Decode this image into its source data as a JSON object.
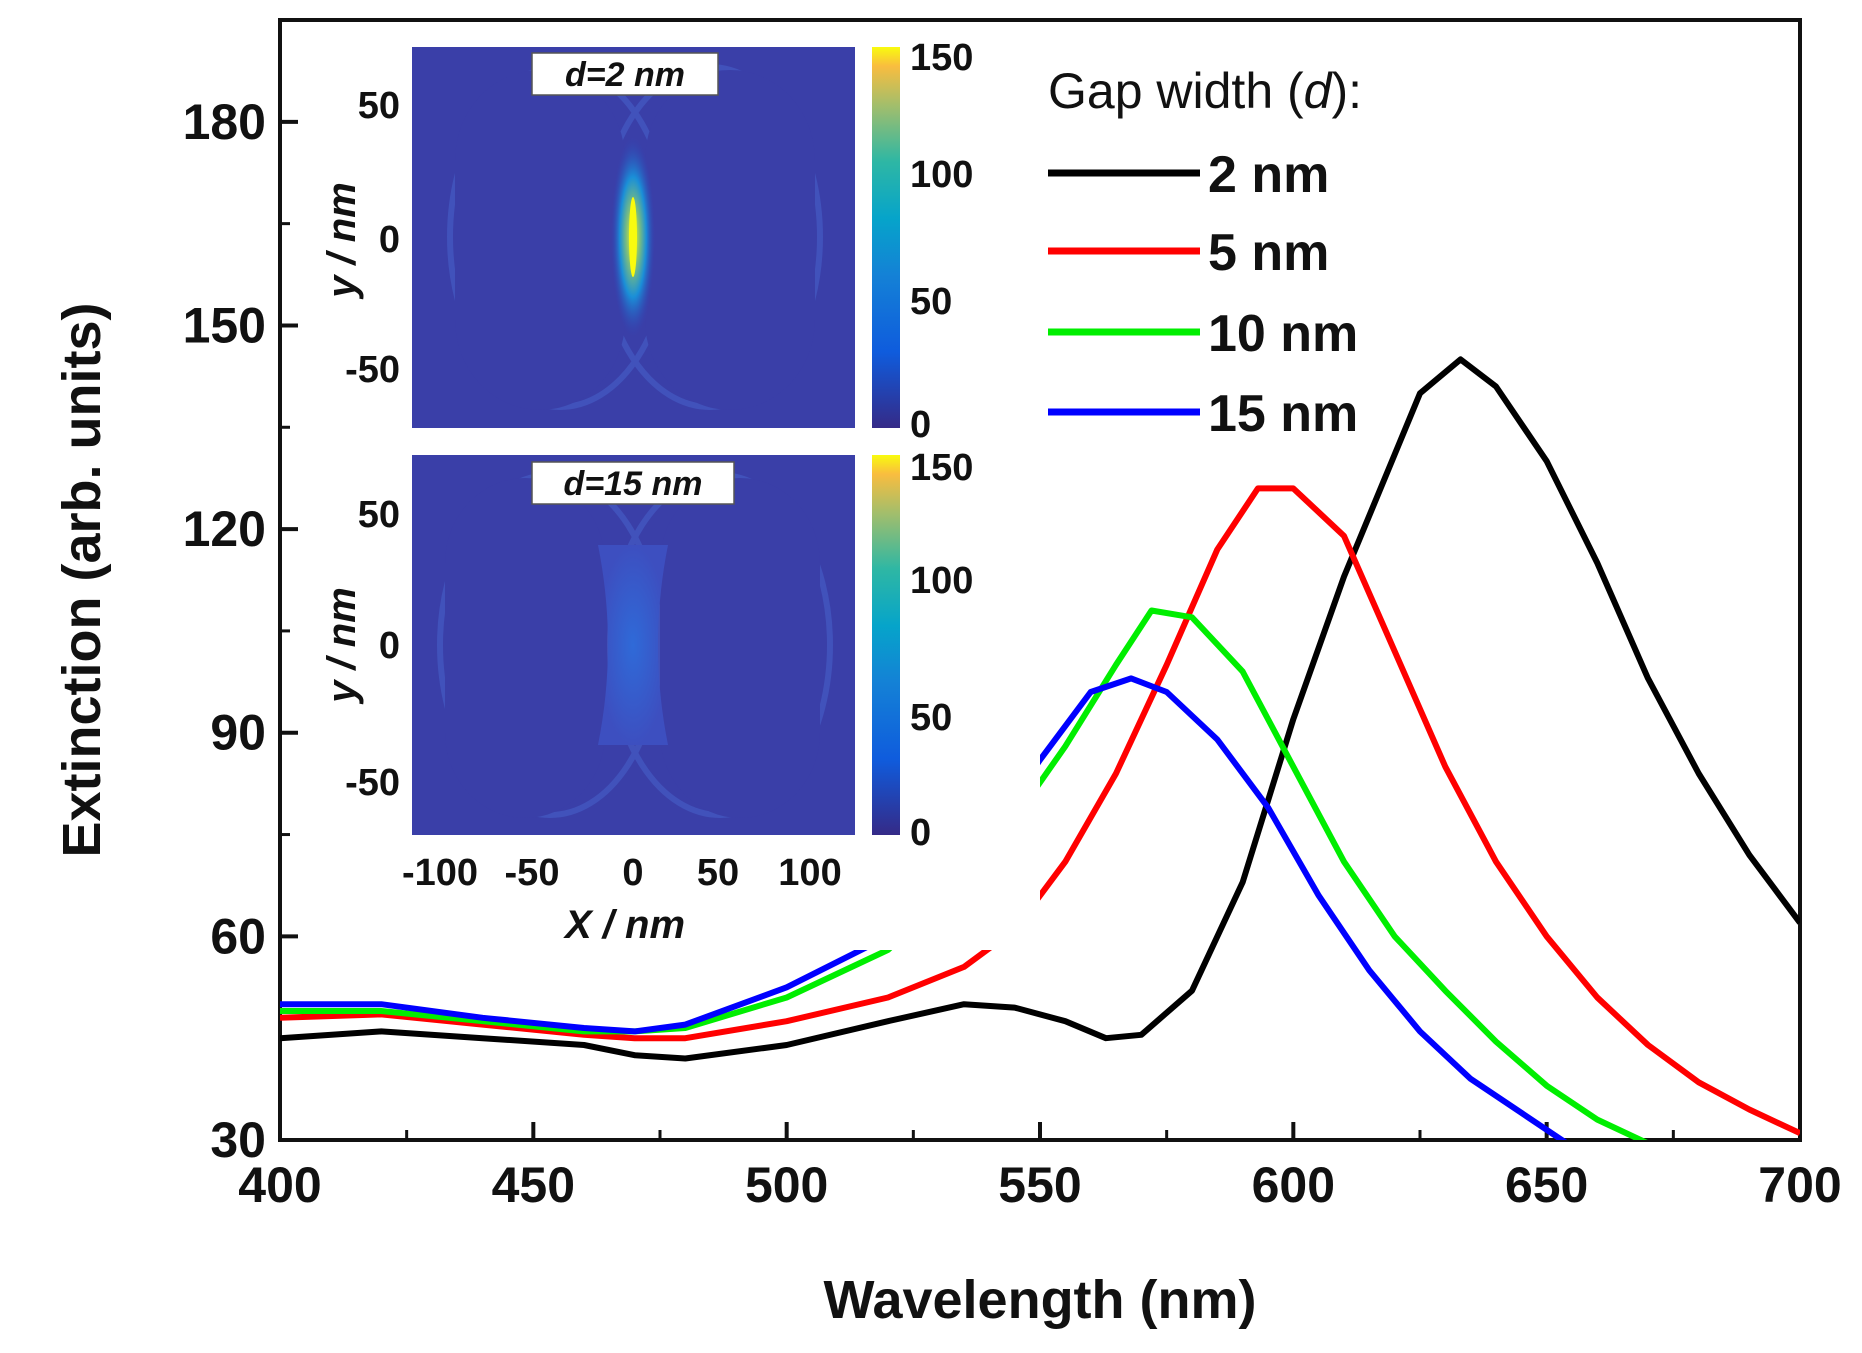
{
  "chart_data": {
    "type": "line",
    "xlabel": "Wavelength (nm)",
    "ylabel": "Extinction (arb. units)",
    "xlim": [
      400,
      700
    ],
    "ylim": [
      30,
      195
    ],
    "xticks": [
      "400",
      "450",
      "500",
      "550",
      "600",
      "650",
      "700"
    ],
    "yticks": [
      "30",
      "60",
      "90",
      "120",
      "150",
      "180"
    ],
    "legend": {
      "title_prefix": "Gap width (",
      "title_var": "d",
      "title_suffix": "):",
      "placement": "top-right"
    },
    "series": [
      {
        "name": "2 nm",
        "color": "#000000",
        "x": [
          400,
          420,
          440,
          460,
          470,
          480,
          500,
          520,
          535,
          545,
          555,
          563,
          570,
          580,
          590,
          600,
          610,
          620,
          625,
          633,
          640,
          650,
          660,
          670,
          680,
          690,
          700
        ],
        "y": [
          45,
          46,
          45,
          44,
          42.5,
          42,
          44,
          47.5,
          50,
          49.5,
          47.5,
          45,
          45.5,
          52,
          68,
          92,
          113,
          131,
          140,
          145,
          141,
          130,
          115,
          98,
          84,
          72,
          62
        ]
      },
      {
        "name": "5 nm",
        "color": "#ff0000",
        "x": [
          400,
          420,
          440,
          460,
          470,
          480,
          500,
          520,
          535,
          545,
          555,
          565,
          575,
          585,
          593,
          600,
          610,
          620,
          630,
          640,
          650,
          660,
          670,
          680,
          690,
          700
        ],
        "y": [
          48,
          48.5,
          47,
          45.5,
          45,
          45,
          47.5,
          51,
          55.5,
          61,
          71,
          84,
          100,
          117,
          126,
          126,
          119,
          102,
          85,
          71,
          60,
          51,
          44,
          38.5,
          34.5,
          31
        ]
      },
      {
        "name": "10 nm",
        "color": "#00ee00",
        "x": [
          400,
          420,
          440,
          460,
          470,
          480,
          500,
          520,
          540,
          555,
          565,
          572,
          580,
          590,
          600,
          610,
          620,
          630,
          640,
          650,
          660,
          670
        ],
        "y": [
          49,
          49,
          47.5,
          46,
          46,
          46.5,
          51,
          58,
          72,
          88,
          100,
          108,
          107,
          99,
          85,
          71,
          60,
          52,
          44.5,
          38,
          33,
          29.5
        ]
      },
      {
        "name": "15 nm",
        "color": "#0000ff",
        "x": [
          400,
          420,
          440,
          460,
          470,
          480,
          500,
          520,
          540,
          550,
          560,
          568,
          575,
          585,
          595,
          605,
          615,
          625,
          635,
          645,
          655
        ],
        "y": [
          50,
          50,
          48,
          46.5,
          46,
          47,
          52.5,
          60,
          75,
          86,
          96,
          98,
          96,
          89,
          79,
          66,
          55,
          46,
          39,
          34,
          29
        ]
      }
    ],
    "insets": [
      {
        "label_var": "d",
        "label_value": "=2 nm",
        "colorbar_ticks": [
          "150",
          "100",
          "50",
          "0"
        ],
        "yticks": [
          "50",
          "0",
          "-50"
        ],
        "ylabel": "y / nm"
      },
      {
        "label_var": "d",
        "label_value": "=15 nm",
        "colorbar_ticks": [
          "150",
          "100",
          "50",
          "0"
        ],
        "yticks": [
          "50",
          "0",
          "-50"
        ],
        "ylabel": "y / nm",
        "xticks": [
          "-100",
          "-50",
          "0",
          "50",
          "100"
        ],
        "xlabel": "X / nm"
      }
    ]
  }
}
